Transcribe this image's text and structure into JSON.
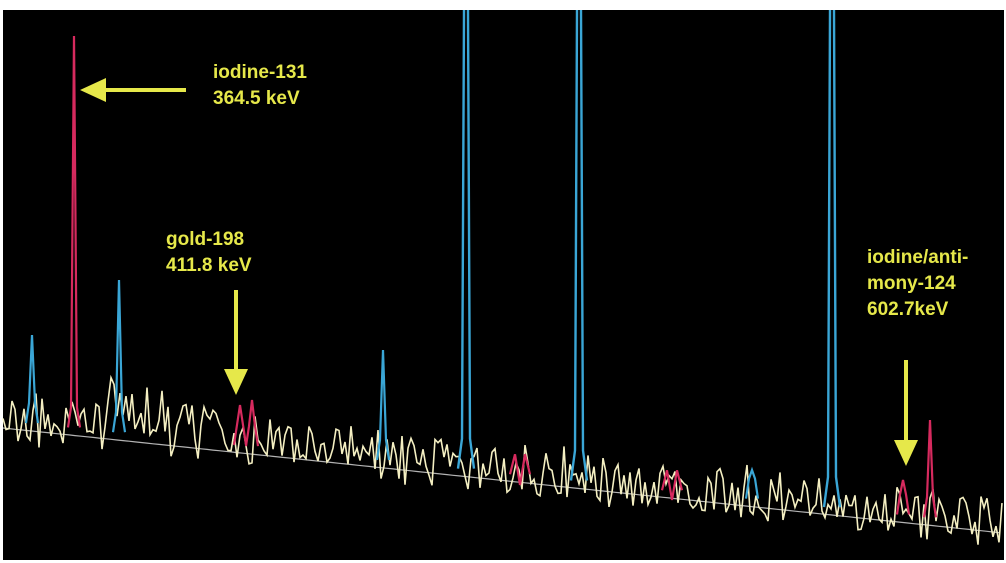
{
  "colors": {
    "background": "#000000",
    "frame": "#ffffff",
    "baseline": "#f4efc2",
    "blue_peaks": "#3aa6d6",
    "red_peaks": "#d62a5e",
    "annotation": "#e6e84a"
  },
  "annotations": [
    {
      "id": "iodine131",
      "line1": "iodine-131",
      "line2": "364.5 keV"
    },
    {
      "id": "gold198",
      "line1": "gold-198",
      "line2": "411.8 keV"
    },
    {
      "id": "iodine124",
      "line1": "iodine/anti-",
      "line2": "mony-124",
      "line3": "602.7keV"
    }
  ],
  "chart_data": {
    "type": "line",
    "title": "",
    "xlabel": "",
    "ylabel": "",
    "grid": false,
    "axes_visible": false,
    "legend": "none",
    "annotated_peaks": [
      {
        "label": "iodine-131",
        "energy_keV": 364.5,
        "color": "red"
      },
      {
        "label": "gold-198",
        "energy_keV": 411.8,
        "color": "red"
      },
      {
        "label": "iodine/antimony-124",
        "energy_keV": 602.7,
        "color": "red"
      }
    ]
  }
}
